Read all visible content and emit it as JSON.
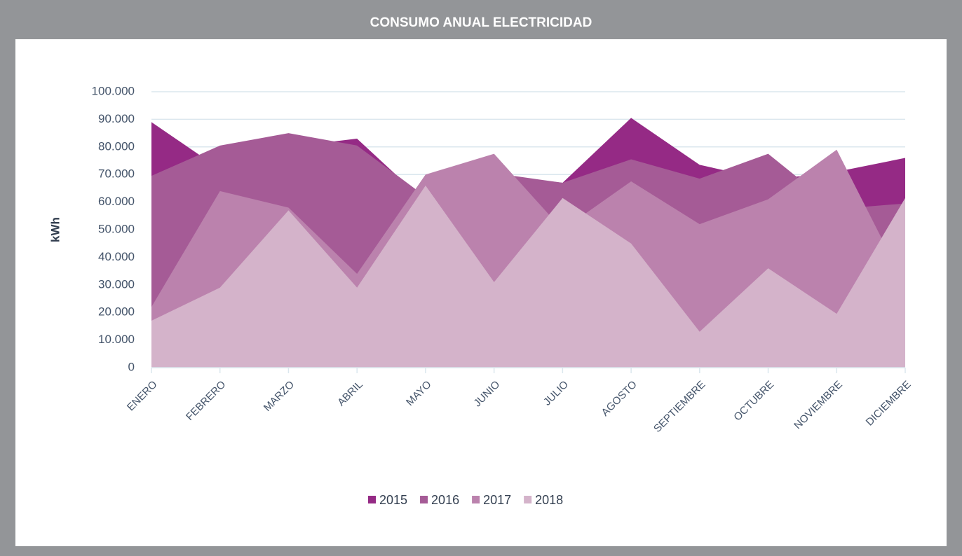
{
  "chart_data": {
    "type": "area",
    "title": "CONSUMO ANUAL ELECTRICIDAD",
    "y_label": "kWh",
    "categories": [
      "ENERO",
      "FEBRERO",
      "MARZO",
      "ABRIL",
      "MAYO",
      "JUNIO",
      "JULIO",
      "AGOSTO",
      "SEPTIEMBRE",
      "OCTUBRE",
      "NOVIEMBRE",
      "DICIEMBRE"
    ],
    "series": [
      {
        "name": "2015",
        "color": "#952a85",
        "values": [
          89000,
          72000,
          80000,
          83000,
          60000,
          70000,
          67000,
          90500,
          73500,
          68000,
          71000,
          76000
        ]
      },
      {
        "name": "2016",
        "color": "#a55b96",
        "values": [
          69500,
          80500,
          85000,
          80500,
          62000,
          70500,
          67000,
          75500,
          68500,
          77500,
          57500,
          59500
        ]
      },
      {
        "name": "2017",
        "color": "#bb82ad",
        "values": [
          22000,
          64000,
          58000,
          34000,
          70000,
          77500,
          50000,
          67500,
          52000,
          61000,
          79000,
          30000
        ]
      },
      {
        "name": "2018",
        "color": "#d4b3ca",
        "values": [
          17000,
          29000,
          57000,
          29000,
          66000,
          31000,
          61500,
          45000,
          13000,
          36000,
          19500,
          61500
        ]
      }
    ],
    "ylim": [
      0,
      100000
    ],
    "yticks": [
      0,
      {
        "value": 10000,
        "label": "10.000"
      },
      {
        "value": 20000,
        "label": "20.000"
      },
      {
        "value": 30000,
        "label": "30.000"
      },
      {
        "value": 40000,
        "label": "40.000"
      },
      {
        "value": 50000,
        "label": "50.000"
      },
      {
        "value": 60000,
        "label": "60.000"
      },
      {
        "value": 70000,
        "label": "70.000"
      },
      {
        "value": 80000,
        "label": "80.000"
      },
      {
        "value": 90000,
        "label": "90.000"
      },
      {
        "value": 100000,
        "label": "100.000"
      }
    ],
    "grid": true,
    "legend": "bottom"
  }
}
